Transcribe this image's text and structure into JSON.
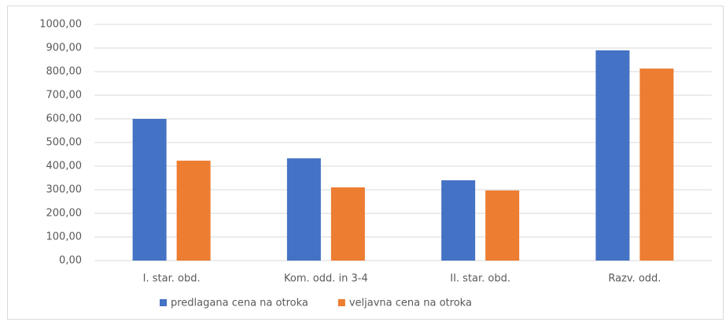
{
  "chart_data": {
    "type": "bar",
    "categories": [
      "I. star. obd.",
      "Kom. odd. in 3-4",
      "II. star. obd.",
      "Razv. odd."
    ],
    "series": [
      {
        "name": "predlagana cena na otroka",
        "color": "#4472c4",
        "values": [
          600,
          433,
          340,
          890
        ]
      },
      {
        "name": "veljavna cena na otroka",
        "color": "#ed7d31",
        "values": [
          423,
          310,
          297,
          813
        ]
      }
    ],
    "ylim": [
      0,
      1000
    ],
    "yticks": [
      {
        "value": 0,
        "label": "0,00"
      },
      {
        "value": 100,
        "label": "100,00"
      },
      {
        "value": 200,
        "label": "200,00"
      },
      {
        "value": 300,
        "label": "300,00"
      },
      {
        "value": 400,
        "label": "400,00"
      },
      {
        "value": 500,
        "label": "500,00"
      },
      {
        "value": 600,
        "label": "600,00"
      },
      {
        "value": 700,
        "label": "700,00"
      },
      {
        "value": 800,
        "label": "800,00"
      },
      {
        "value": 900,
        "label": "900,00"
      },
      {
        "value": 1000,
        "label": "1000,00"
      }
    ],
    "grid": true,
    "legend": "bottom"
  }
}
